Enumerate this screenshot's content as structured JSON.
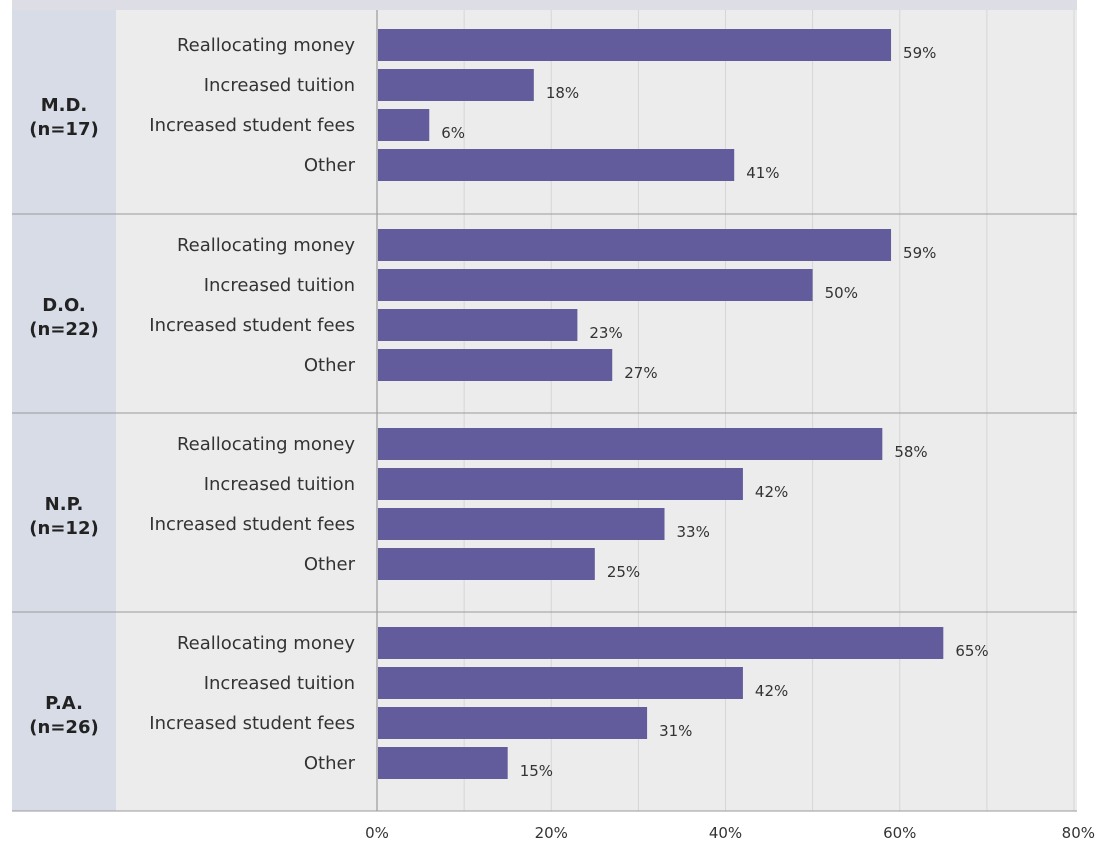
{
  "chart_data": {
    "type": "bar",
    "orientation": "horizontal",
    "xlim": [
      0,
      80
    ],
    "x_tick_labels": [
      "0%",
      "20%",
      "40%",
      "60%",
      "80%"
    ],
    "grid": true,
    "bar_color": "#635c9c",
    "groups": [
      {
        "name_line1": "M.D.",
        "name_line2": "(n=17)",
        "categories": [
          "Reallocating money",
          "Increased tuition",
          "Increased student fees",
          "Other"
        ],
        "values": [
          59,
          18,
          6,
          41
        ],
        "value_labels": [
          "59%",
          "18%",
          "6%",
          "41%"
        ]
      },
      {
        "name_line1": "D.O.",
        "name_line2": "(n=22)",
        "categories": [
          "Reallocating money",
          "Increased tuition",
          "Increased student fees",
          "Other"
        ],
        "values": [
          59,
          50,
          23,
          27
        ],
        "value_labels": [
          "59%",
          "50%",
          "23%",
          "27%"
        ]
      },
      {
        "name_line1": "N.P.",
        "name_line2": "(n=12)",
        "categories": [
          "Reallocating money",
          "Increased tuition",
          "Increased student fees",
          "Other"
        ],
        "values": [
          58,
          42,
          33,
          25
        ],
        "value_labels": [
          "58%",
          "42%",
          "33%",
          "25%"
        ]
      },
      {
        "name_line1": "P.A.",
        "name_line2": "(n=26)",
        "categories": [
          "Reallocating money",
          "Increased tuition",
          "Increased student fees",
          "Other"
        ],
        "values": [
          65,
          42,
          31,
          15
        ],
        "value_labels": [
          "65%",
          "42%",
          "31%",
          "15%"
        ]
      }
    ]
  }
}
